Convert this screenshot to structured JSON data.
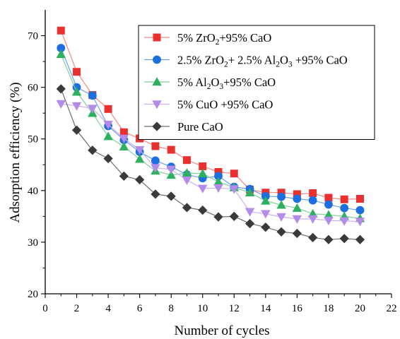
{
  "chart_data": {
    "type": "line",
    "xlabel": "Number of cycles",
    "ylabel": "Adsorption efficiency (%)",
    "xlim": [
      0,
      22
    ],
    "ylim": [
      20,
      75
    ],
    "xticks": [
      0,
      2,
      4,
      6,
      8,
      10,
      12,
      14,
      16,
      18,
      20,
      22
    ],
    "yticks": [
      20,
      30,
      40,
      50,
      60,
      70
    ],
    "grid": false,
    "legend_position": "top-right",
    "x": [
      1,
      2,
      3,
      4,
      5,
      6,
      7,
      8,
      9,
      10,
      11,
      12,
      13,
      14,
      15,
      16,
      17,
      18,
      19,
      20
    ],
    "series": [
      {
        "name": "5% ZrO2+95% CaO",
        "legend_parts": [
          [
            "5% ZrO",
            ""
          ],
          [
            "2",
            "sub"
          ],
          [
            "+95% CaO",
            ""
          ]
        ],
        "marker": "square",
        "marker_color": "#e8312f",
        "line_color": "#f08a88",
        "values": [
          71.0,
          63.0,
          58.5,
          55.8,
          51.3,
          50.1,
          48.6,
          47.9,
          45.9,
          44.7,
          43.6,
          43.3,
          40.2,
          39.6,
          39.6,
          39.3,
          39.5,
          38.6,
          38.3,
          38.4
        ]
      },
      {
        "name": "2.5% ZrO2+ 2.5% Al2O3 +95% CaO",
        "legend_parts": [
          [
            "2.5% ZrO",
            ""
          ],
          [
            "2",
            "sub"
          ],
          [
            "+ 2.5% Al",
            ""
          ],
          [
            "2",
            "sub"
          ],
          [
            "O",
            ""
          ],
          [
            "3",
            "sub"
          ],
          [
            " +95% CaO",
            ""
          ]
        ],
        "marker": "circle",
        "marker_color": "#1c6fe0",
        "line_color": "#6aa0f0",
        "values": [
          67.6,
          60.0,
          58.4,
          52.5,
          49.8,
          47.5,
          45.8,
          44.6,
          43.1,
          42.4,
          42.8,
          40.7,
          40.3,
          38.9,
          38.8,
          38.4,
          38.1,
          37.3,
          36.6,
          36.2
        ]
      },
      {
        "name": "5% Al2O3+95% CaO",
        "legend_parts": [
          [
            "5% Al",
            ""
          ],
          [
            "2",
            "sub"
          ],
          [
            "O",
            ""
          ],
          [
            "3",
            "sub"
          ],
          [
            "+95% CaO",
            ""
          ]
        ],
        "marker": "triangle-up",
        "marker_color": "#2fb060",
        "line_color": "#7fd09a",
        "values": [
          66.4,
          59.1,
          55.0,
          50.5,
          48.5,
          46.1,
          43.8,
          43.0,
          43.4,
          43.3,
          41.7,
          40.6,
          39.6,
          38.0,
          37.2,
          36.6,
          35.5,
          35.3,
          35.0,
          34.6
        ]
      },
      {
        "name": "5% CuO +95% CaO",
        "legend_parts": [
          [
            "5% CuO +95% CaO",
            ""
          ]
        ],
        "marker": "triangle-down",
        "marker_color": "#b38be8",
        "line_color": "#cdb0f0",
        "values": [
          56.8,
          56.4,
          55.9,
          52.8,
          50.1,
          47.9,
          44.4,
          44.1,
          42.0,
          40.4,
          40.5,
          40.3,
          35.9,
          35.5,
          34.9,
          34.5,
          34.5,
          34.2,
          34.1,
          34.0
        ]
      },
      {
        "name": "Pure CaO",
        "legend_parts": [
          [
            "Pure CaO",
            ""
          ]
        ],
        "marker": "diamond",
        "marker_color": "#3a3a3a",
        "line_color": "#6e6e6e",
        "values": [
          59.7,
          51.7,
          47.8,
          46.2,
          42.8,
          42.1,
          39.3,
          38.9,
          36.7,
          36.2,
          34.9,
          35.0,
          33.6,
          32.9,
          32.0,
          31.7,
          30.9,
          30.5,
          30.7,
          30.5
        ]
      }
    ]
  }
}
